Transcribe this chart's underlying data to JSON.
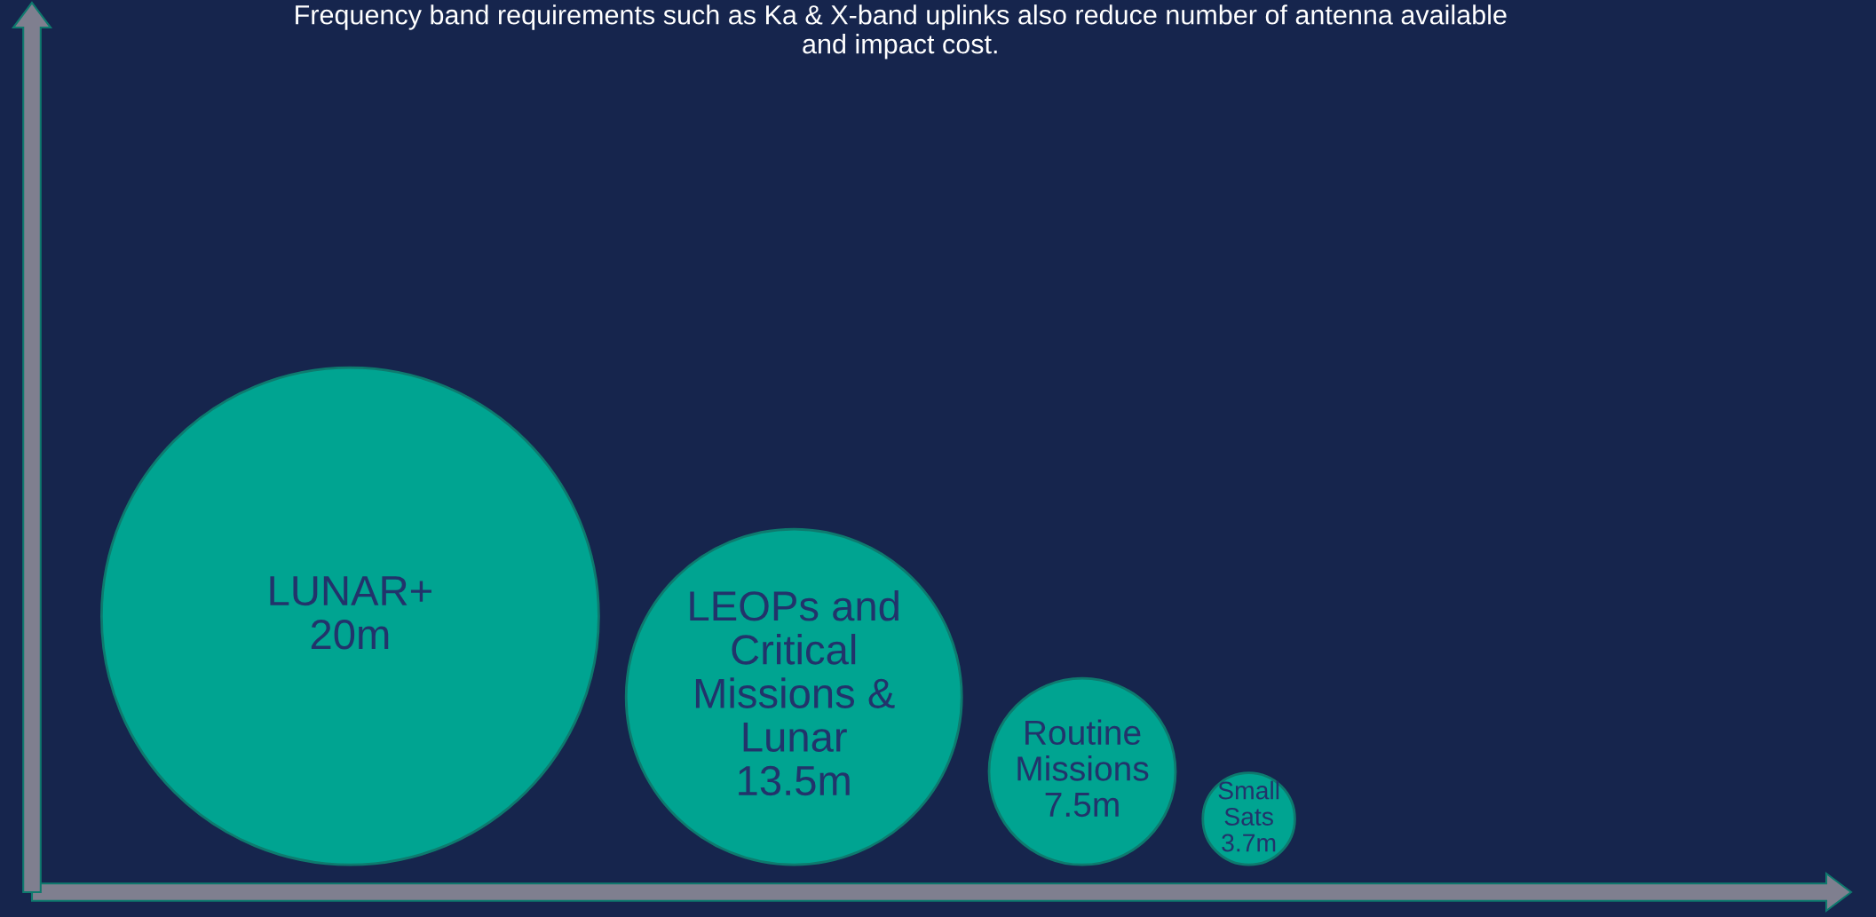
{
  "chart_data": {
    "type": "other",
    "title": "Frequency band requirements such as Ka & X-band uplinks also reduce number of antenna available\nand impact cost.",
    "categories": [
      "LUNAR+",
      "LEOPs and\nCritical\nMissions &\nLunar",
      "Routine\nMissions",
      "Small\nSats"
    ],
    "values": [
      20,
      13.5,
      7.5,
      3.7
    ],
    "value_labels": [
      "20m",
      "13.5m",
      "7.5m",
      "3.7m"
    ],
    "color": "#00a491"
  }
}
